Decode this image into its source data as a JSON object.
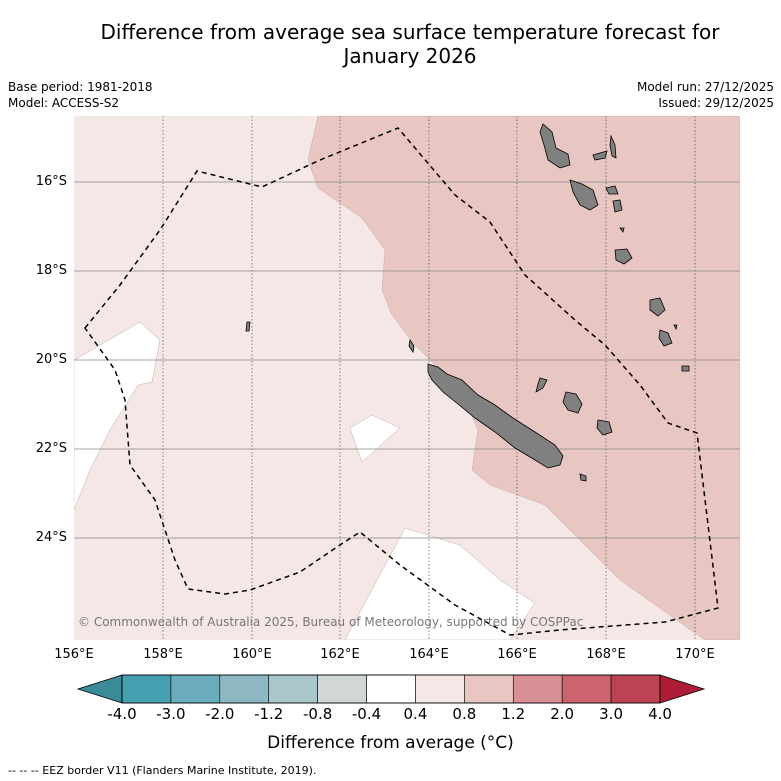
{
  "title_line1": "Difference from average sea surface temperature forecast for",
  "title_line2": "January 2026",
  "base_period": "Base period: 1981-2018",
  "model": "Model: ACCESS-S2",
  "model_run": "Model run: 27/12/2025",
  "issued": "Issued: 29/12/2025",
  "copyright": "© Commonwealth of Australia 2025, Bureau of Meteorology, supported by COSPPac",
  "lat_labels": [
    "16°S",
    "18°S",
    "20°S",
    "22°S",
    "24°S"
  ],
  "lon_labels": [
    "156°E",
    "158°E",
    "160°E",
    "162°E",
    "164°E",
    "166°E",
    "168°E",
    "170°E"
  ],
  "colorbar": {
    "ticks": [
      "-4.0",
      "-3.0",
      "-2.0",
      "-1.2",
      "-0.8",
      "-0.4",
      "0.4",
      "0.8",
      "1.2",
      "2.0",
      "3.0",
      "4.0"
    ],
    "colors": [
      "#45a0b0",
      "#6aacbb",
      "#8db8c3",
      "#a9c7cb",
      "#d1d6d7",
      "#ffffff",
      "#f5e7e5",
      "#e8c6c1",
      "#d88f96",
      "#cc6470",
      "#bd4252"
    ],
    "under_color": "#3b8a97",
    "over_color": "#ad1d38",
    "label": "Difference from average (°C)"
  },
  "legend_text": "--  --  -- EEZ border V11 (Flanders Marine Institute, 2019).",
  "colors": {
    "base_fill": "#f5e7e5",
    "warm_fill": "#e8c6c1",
    "neutral_fill": "#ffffff",
    "land": "#808080"
  }
}
